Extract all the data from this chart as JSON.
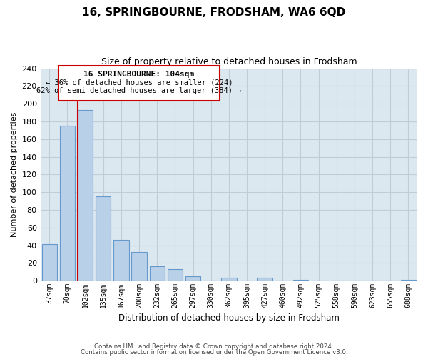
{
  "title": "16, SPRINGBOURNE, FRODSHAM, WA6 6QD",
  "subtitle": "Size of property relative to detached houses in Frodsham",
  "xlabel": "Distribution of detached houses by size in Frodsham",
  "ylabel": "Number of detached properties",
  "bar_labels": [
    "37sqm",
    "70sqm",
    "102sqm",
    "135sqm",
    "167sqm",
    "200sqm",
    "232sqm",
    "265sqm",
    "297sqm",
    "330sqm",
    "362sqm",
    "395sqm",
    "427sqm",
    "460sqm",
    "492sqm",
    "525sqm",
    "558sqm",
    "590sqm",
    "623sqm",
    "655sqm",
    "688sqm"
  ],
  "bar_values": [
    41,
    175,
    193,
    95,
    46,
    32,
    16,
    13,
    5,
    0,
    3,
    0,
    3,
    0,
    1,
    0,
    0,
    0,
    0,
    0,
    1
  ],
  "highlight_index": 2,
  "bar_fill_color": "#b8d0e8",
  "bar_edge_color": "#6699cc",
  "highlight_edge_color": "#cc0000",
  "vline_color": "#cc0000",
  "axes_bg_color": "#dce8f0",
  "grid_color": "#c0ccd8",
  "ylim": [
    0,
    240
  ],
  "yticks": [
    0,
    20,
    40,
    60,
    80,
    100,
    120,
    140,
    160,
    180,
    200,
    220,
    240
  ],
  "annotation_title": "16 SPRINGBOURNE: 104sqm",
  "annotation_line1": "← 36% of detached houses are smaller (224)",
  "annotation_line2": "62% of semi-detached houses are larger (384) →",
  "footer1": "Contains HM Land Registry data © Crown copyright and database right 2024.",
  "footer2": "Contains public sector information licensed under the Open Government Licence v3.0."
}
